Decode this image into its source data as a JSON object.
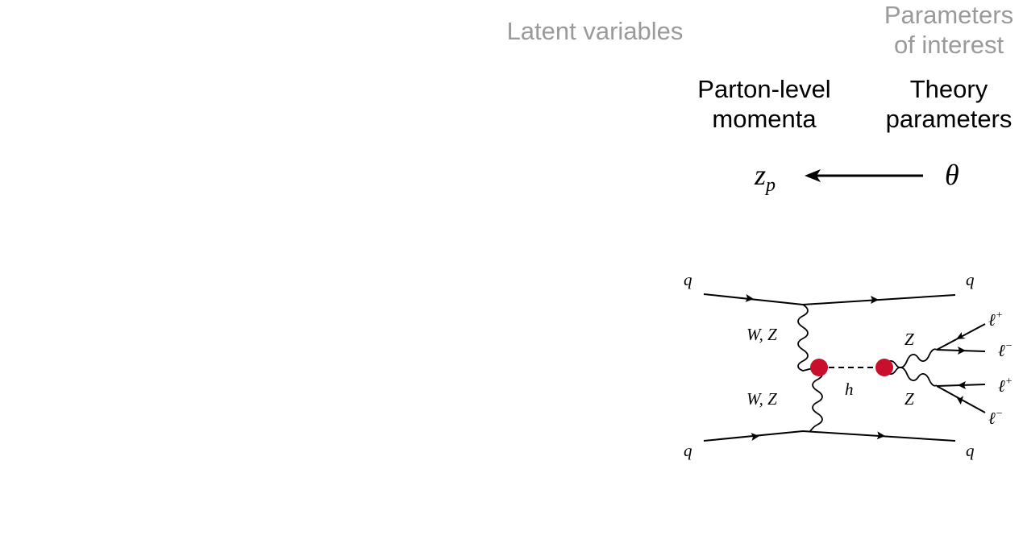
{
  "header": {
    "latent_variables": "Latent variables",
    "parameters_of_interest_line1": "Parameters",
    "parameters_of_interest_line2": "of interest"
  },
  "columns": {
    "parton_line1": "Parton-level",
    "parton_line2": "momenta",
    "theory_line1": "Theory",
    "theory_line2": "parameters"
  },
  "symbols": {
    "zp_base": "z",
    "zp_sub": "p",
    "theta": "θ"
  },
  "feynman": {
    "quark_top_in": "q",
    "quark_top_out": "q",
    "quark_bottom_in": "q",
    "quark_bottom_out": "q",
    "boson_upper": "W, Z",
    "boson_lower": "W, Z",
    "higgs": "h",
    "z_upper": "Z",
    "z_lower": "Z",
    "lepton1": "ℓ",
    "lepton1_sup": "+",
    "lepton2": "ℓ",
    "lepton2_sup": "−",
    "lepton3": "ℓ",
    "lepton3_sup": "+",
    "lepton4": "ℓ",
    "lepton4_sup": "−",
    "vertex_color": "#c8102e"
  }
}
